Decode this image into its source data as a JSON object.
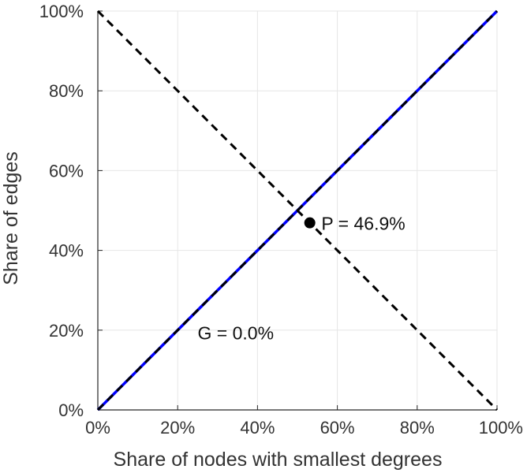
{
  "chart_data": {
    "type": "line",
    "xlabel": "Share of nodes with smallest degrees",
    "ylabel": "Share of edges",
    "xlim": [
      0,
      100
    ],
    "ylim": [
      0,
      100
    ],
    "x_ticks": [
      "0%",
      "20%",
      "40%",
      "60%",
      "80%",
      "100%"
    ],
    "y_ticks": [
      "0%",
      "20%",
      "40%",
      "60%",
      "80%",
      "100%"
    ],
    "grid": true,
    "series": [
      {
        "style": "solid",
        "color": "#0000ff",
        "x": [
          0,
          100
        ],
        "y": [
          0,
          100
        ]
      },
      {
        "style": "dashed",
        "color": "#000000",
        "x": [
          0,
          100
        ],
        "y": [
          0,
          100
        ]
      },
      {
        "style": "dashed",
        "color": "#000000",
        "x": [
          0,
          100
        ],
        "y": [
          100,
          0
        ]
      }
    ],
    "points": [
      {
        "x": 53.1,
        "y": 46.9,
        "color": "#000000"
      }
    ],
    "annotations": [
      {
        "text": "P = 46.9%",
        "x": 56,
        "y": 46.9
      },
      {
        "text": "G = 0.0%",
        "x": 25,
        "y": 19.5
      }
    ]
  }
}
